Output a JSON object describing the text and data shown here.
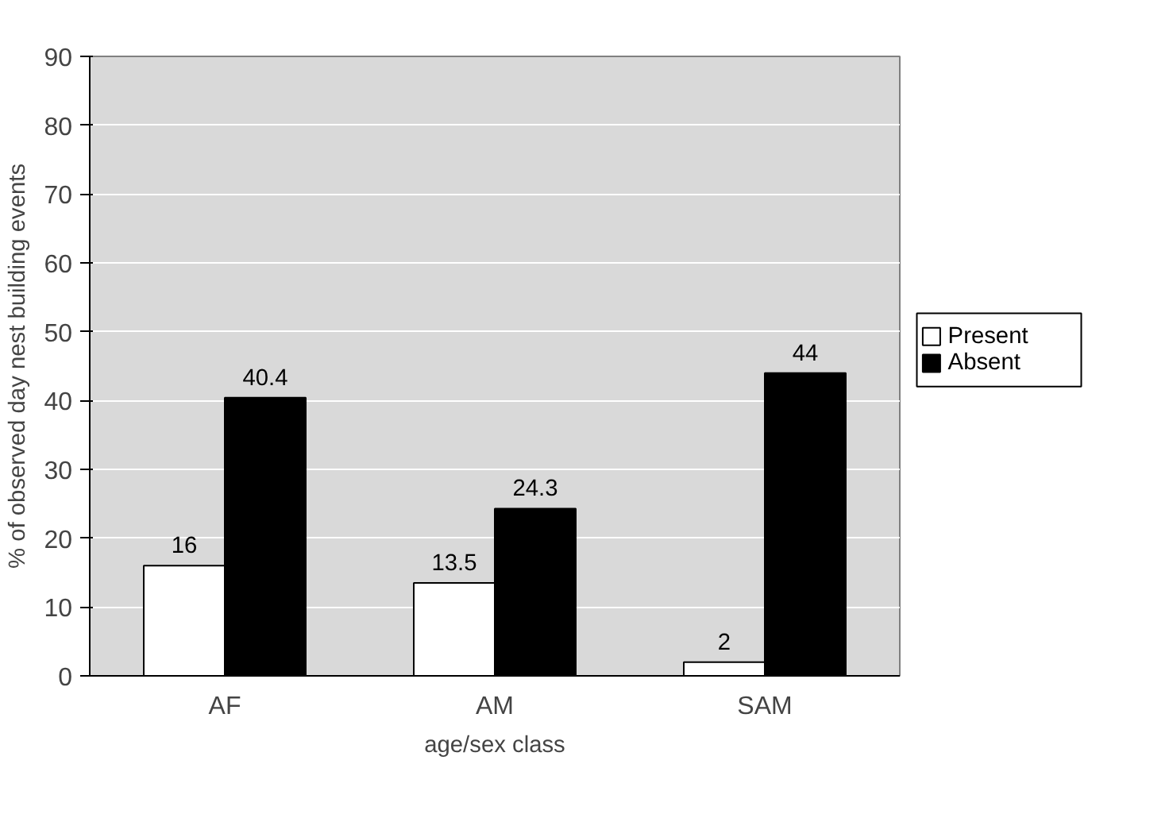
{
  "chart_data": {
    "type": "bar",
    "xlabel": "age/sex class",
    "ylabel": "% of observed day nest building events",
    "categories": [
      "AF",
      "AM",
      "SAM"
    ],
    "series": [
      {
        "name": "Present",
        "color": "#ffffff",
        "values": [
          16,
          13.5,
          2
        ]
      },
      {
        "name": "Absent",
        "color": "#000000",
        "values": [
          40.4,
          24.3,
          44
        ]
      }
    ],
    "ylim": [
      0,
      90
    ],
    "yticks": [
      0,
      10,
      20,
      30,
      40,
      50,
      60,
      70,
      80,
      90
    ],
    "grid": "y",
    "legend": "right",
    "data_labels": true
  }
}
